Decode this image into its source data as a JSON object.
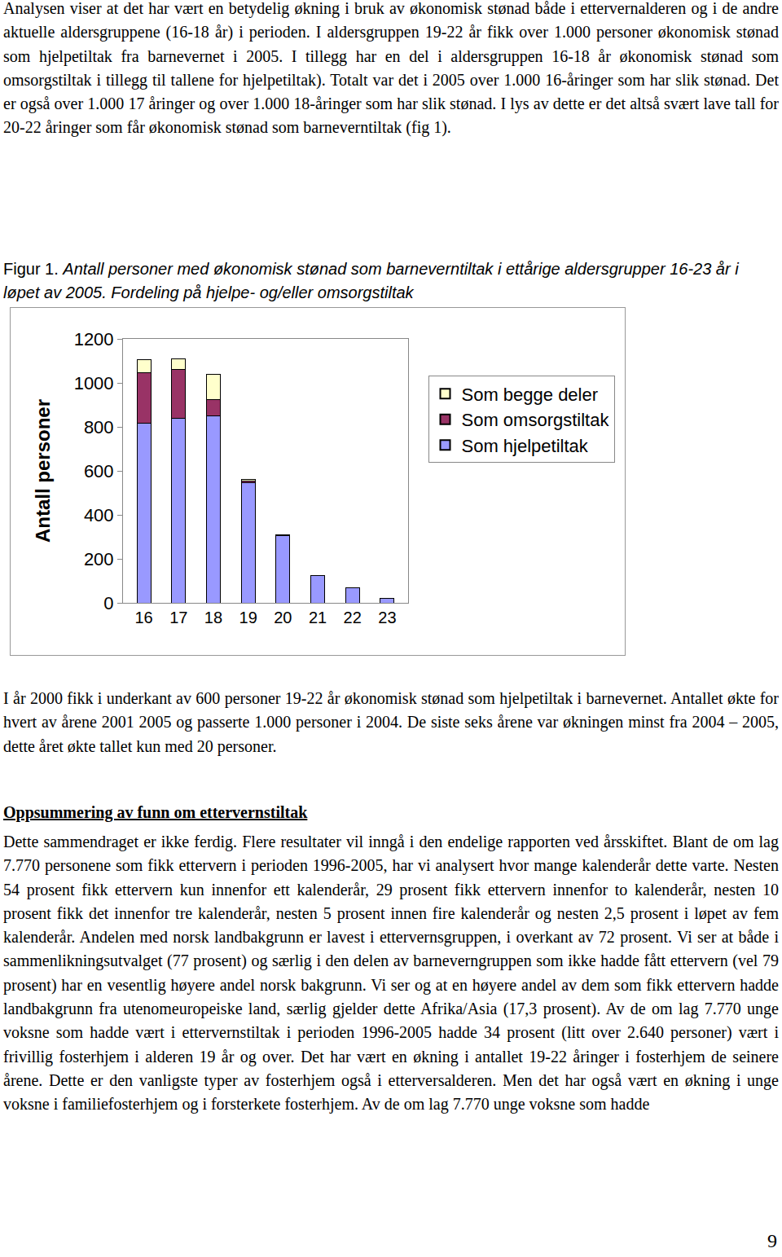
{
  "page": {
    "paragraph_1": "Analysen viser at det har vært en betydelig økning i bruk av økonomisk stønad både i ettervernalderen og i de andre aktuelle aldersgruppene (16-18 år) i perioden. I aldersgruppen 19-22 år fikk over 1.000 personer økonomisk stønad som hjelpetiltak fra barnevernet i 2005. I tillegg har en del i aldersgruppen 16-18 år økonomisk stønad som omsorgstiltak i tillegg til tallene for hjelpetiltak). Totalt var det i 2005 over 1.000 16-åringer som har slik stønad. Det er også over 1.000 17 åringer og over 1.000 18-åringer som har slik stønad. I lys av dette er det altså svært lave tall for 20-22 åringer som får økonomisk stønad som barneverntiltak (fig 1).",
    "caption": {
      "label": "Figur 1.",
      "text": "Antall personer med økonomisk stønad som barneverntiltak i ettårige aldersgrupper 16-23 år i løpet av 2005. Fordeling på hjelpe- og/eller omsorgstiltak"
    },
    "paragraph_2": "I år 2000 fikk i underkant av 600 personer 19-22 år økonomisk stønad som hjelpetiltak i barnevernet. Antallet økte for hvert av årene 2001 2005 og passerte 1.000 personer i 2004. De siste seks årene var økningen minst fra 2004 – 2005, dette året økte tallet kun med 20 personer.",
    "heading": "Oppsummering av funn om ettervernstiltak",
    "paragraph_3": "Dette sammendraget er ikke ferdig. Flere resultater vil inngå i den endelige rapporten ved årsskiftet. Blant de om lag 7.770 personene som fikk ettervern i perioden 1996-2005, har vi analysert hvor mange kalenderår dette varte. Nesten 54 prosent fikk ettervern kun innenfor ett kalenderår, 29 prosent fikk ettervern innenfor to kalenderår, nesten 10 prosent fikk det innenfor tre kalenderår, nesten 5 prosent innen fire kalenderår og nesten 2,5 prosent i løpet av fem kalenderår. Andelen med norsk landbakgrunn er lavest i ettervernsgruppen, i overkant av 72 prosent. Vi ser at både i sammenlikningsutvalget (77 prosent) og særlig i den delen av barneverngruppen som ikke hadde fått ettervern (vel 79 prosent) har en vesentlig høyere andel norsk bakgrunn. Vi ser og at en høyere andel av dem som fikk ettervern hadde landbakgrunn fra utenomeuropeiske land, særlig gjelder dette Afrika/Asia (17,3 prosent). Av de om lag 7.770 unge voksne som hadde vært i ettervernstiltak i perioden 1996-2005 hadde 34 prosent (litt over 2.640 personer) vært i frivillig fosterhjem i alderen 19 år og over. Det har vært en økning i antallet 19-22 åringer i fosterhjem de seinere årene. Dette er den vanligste typer av fosterhjem også i etterversalderen. Men det har også vært en økning i unge voksne i familiefosterhjem og i forsterkete fosterhjem. Av de om lag 7.770 unge voksne som hadde",
    "page_number": "9"
  },
  "chart_data": {
    "type": "bar",
    "stacked": true,
    "y_label": "Antall personer",
    "categories": [
      16,
      17,
      18,
      19,
      20,
      21,
      22,
      23
    ],
    "series": [
      {
        "name": "Som hjelpetiltak",
        "color": "#9999ff",
        "values": [
          817,
          839,
          850,
          545,
          305,
          125,
          70,
          22
        ]
      },
      {
        "name": "Som omsorgstiltak",
        "color": "#993366",
        "values": [
          228,
          221,
          74,
          8,
          2,
          0,
          0,
          0
        ]
      },
      {
        "name": "Som begge deler",
        "color": "#ffffcc",
        "values": [
          59,
          51,
          114,
          7,
          3,
          0,
          0,
          0
        ]
      }
    ],
    "ylim": [
      0,
      1200
    ],
    "yticks": [
      0,
      200,
      400,
      600,
      800,
      1000,
      1200
    ],
    "grid": false,
    "legend": "right"
  }
}
